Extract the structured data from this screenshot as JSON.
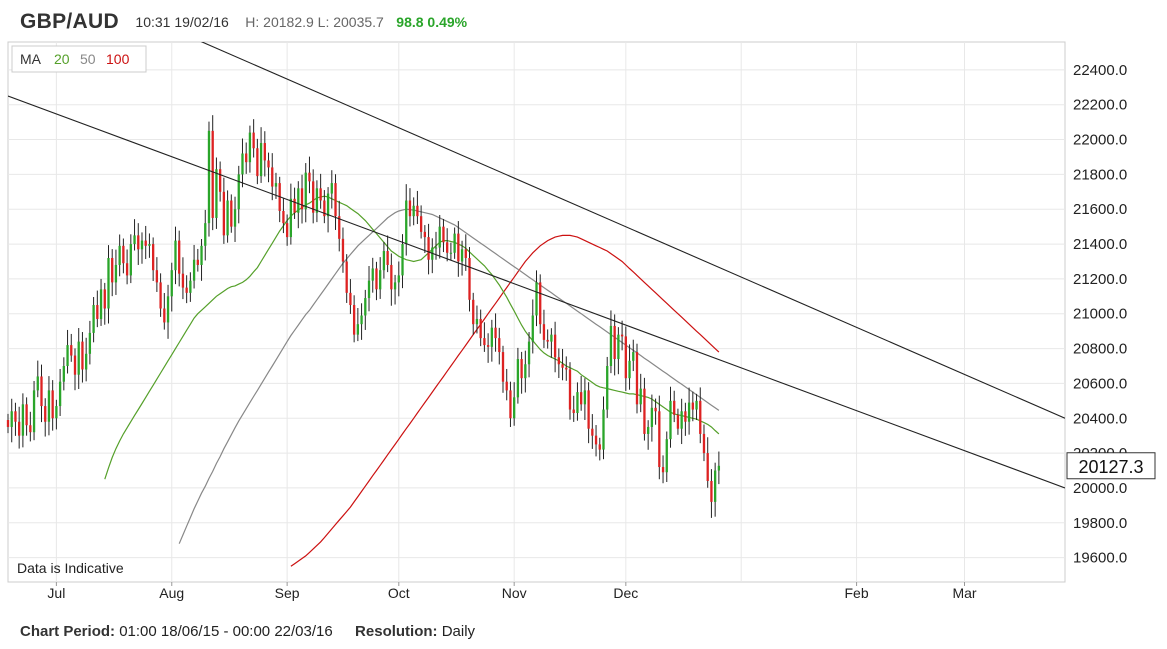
{
  "header": {
    "symbol": "GBP/AUD",
    "timestamp": "10:31 19/02/16",
    "high_low": "H: 20182.9 L: 20035.7",
    "change": "98.8 0.49%",
    "change_color": "#2aa52a"
  },
  "legend": {
    "ma_label": "MA",
    "ma20": "20",
    "ma50": "50",
    "ma100": "100",
    "ma20_color": "#55a02a",
    "ma50_color": "#888888",
    "ma100_color": "#cc1111"
  },
  "indicative_note": "Data is Indicative",
  "price_tag": "20127.3",
  "footer": {
    "period_label": "Chart Period:",
    "period_value": "01:00 18/06/15 - 00:00 22/03/16",
    "resolution_label": "Resolution:",
    "resolution_value": "Daily"
  },
  "chart_data": {
    "type": "candlestick",
    "y_ticks": [
      "22400.0",
      "22200.0",
      "22000.0",
      "21800.0",
      "21600.0",
      "21400.0",
      "21200.0",
      "21000.0",
      "20800.0",
      "20600.0",
      "20400.0",
      "20200.0",
      "20000.0",
      "19800.0",
      "19600.0"
    ],
    "ylim": [
      19460,
      22560
    ],
    "x_labels": [
      "Jul",
      "Aug",
      "Sep",
      "Oct",
      "Nov",
      "Dec",
      "Feb",
      "Mar"
    ],
    "x_ticks_days": [
      13,
      44,
      75,
      105,
      136,
      166,
      228,
      257
    ],
    "x_grid_days": [
      13,
      44,
      75,
      105,
      136,
      166,
      197,
      228,
      257
    ],
    "xlim": [
      0,
      284
    ],
    "grid": true,
    "up_color": "#2aa52a",
    "down_color": "#dd2222",
    "trendlines": [
      {
        "start": [
          0,
          22250
        ],
        "end": [
          284,
          20000
        ]
      },
      {
        "start": [
          50,
          22580
        ],
        "end": [
          284,
          20400
        ]
      }
    ],
    "closes": [
      20350,
      20440,
      20380,
      20300,
      20480,
      20360,
      20320,
      20560,
      20640,
      20470,
      20380,
      20560,
      20400,
      20470,
      20610,
      20700,
      20820,
      20760,
      20650,
      20840,
      20680,
      20770,
      20890,
      21050,
      20970,
      21140,
      21030,
      21320,
      21180,
      21280,
      21390,
      21290,
      21220,
      21400,
      21450,
      21370,
      21420,
      21390,
      21400,
      21250,
      21180,
      21030,
      20950,
      21100,
      21250,
      21420,
      21230,
      21150,
      21120,
      21190,
      21310,
      21280,
      21390,
      21520,
      22050,
      21550,
      21830,
      21700,
      21450,
      21650,
      21500,
      21600,
      21800,
      21920,
      21870,
      22040,
      21950,
      21790,
      21980,
      21880,
      21840,
      21730,
      21750,
      21590,
      21520,
      21440,
      21660,
      21580,
      21720,
      21600,
      21810,
      21760,
      21580,
      21720,
      21650,
      21560,
      21690,
      21750,
      21560,
      21430,
      21300,
      21120,
      21050,
      20880,
      20940,
      20990,
      21090,
      21190,
      21260,
      21140,
      21250,
      21360,
      21280,
      21140,
      21180,
      21220,
      21400,
      21650,
      21560,
      21620,
      21560,
      21470,
      21440,
      21310,
      21380,
      21380,
      21500,
      21410,
      21350,
      21350,
      21460,
      21300,
      21370,
      21320,
      21080,
      20940,
      20970,
      20860,
      20820,
      20810,
      20920,
      20860,
      20780,
      20610,
      20560,
      20400,
      20520,
      20740,
      20630,
      20710,
      20840,
      20990,
      21180,
      20940,
      20850,
      20840,
      20880,
      20750,
      20710,
      20690,
      20680,
      20450,
      20430,
      20550,
      20480,
      20560,
      20340,
      20300,
      20250,
      20220,
      20450,
      20700,
      20930,
      20740,
      20880,
      20870,
      20630,
      20730,
      20780,
      20480,
      20570,
      20310,
      20350,
      20460,
      20440,
      20120,
      20090,
      20280,
      20500,
      20420,
      20340,
      20440,
      20380,
      20490,
      20450,
      20500,
      20310,
      20200,
      20040,
      19920,
      20100,
      20127
    ],
    "ma20": [
      20050,
      20115,
      20175,
      20225,
      20270,
      20310,
      20345,
      20380,
      20415,
      20450,
      20485,
      20520,
      20555,
      20590,
      20625,
      20660,
      20695,
      20730,
      20765,
      20800,
      20835,
      20870,
      20905,
      20940,
      20975,
      21000,
      21020,
      21040,
      21060,
      21080,
      21100,
      21115,
      21130,
      21145,
      21155,
      21160,
      21170,
      21180,
      21195,
      21215,
      21240,
      21265,
      21300,
      21335,
      21370,
      21405,
      21440,
      21475,
      21505,
      21535,
      21560,
      21580,
      21595,
      21610,
      21625,
      21635,
      21650,
      21665,
      21670,
      21675,
      21670,
      21660,
      21650,
      21640,
      21630,
      21620,
      21605,
      21590,
      21575,
      21555,
      21535,
      21510,
      21485,
      21460,
      21435,
      21410,
      21385,
      21360,
      21345,
      21330,
      21320,
      21310,
      21305,
      21300,
      21305,
      21310,
      21330,
      21350,
      21370,
      21390,
      21410,
      21420,
      21420,
      21415,
      21410,
      21400,
      21390,
      21375,
      21355,
      21335,
      21315,
      21295,
      21275,
      21250,
      21225,
      21195,
      21165,
      21130,
      21095,
      21055,
      21015,
      20975,
      20935,
      20900,
      20870,
      20845,
      20820,
      20795,
      20775,
      20760,
      20750,
      20740,
      20730,
      20715,
      20700,
      20690,
      20680,
      20670,
      20650,
      20635,
      20620,
      20605,
      20590,
      20580,
      20575,
      20570,
      20565,
      20560,
      20555,
      20550,
      20545,
      20540,
      20540,
      20535,
      20530,
      20525,
      20520,
      20510,
      20495,
      20480,
      20465,
      20450,
      20435,
      20425,
      20420,
      20415,
      20410,
      20405,
      20400,
      20395,
      20385,
      20375,
      20365,
      20350,
      20330,
      20310
    ],
    "ma50": [
      19680,
      19730,
      19780,
      19830,
      19880,
      19925,
      19970,
      20010,
      20055,
      20095,
      20140,
      20180,
      20225,
      20265,
      20305,
      20345,
      20385,
      20420,
      20455,
      20490,
      20525,
      20560,
      20595,
      20630,
      20665,
      20700,
      20735,
      20770,
      20805,
      20840,
      20875,
      20905,
      20935,
      20965,
      20995,
      21020,
      21050,
      21080,
      21110,
      21140,
      21170,
      21200,
      21230,
      21260,
      21290,
      21315,
      21340,
      21365,
      21390,
      21410,
      21430,
      21450,
      21470,
      21490,
      21510,
      21530,
      21550,
      21565,
      21580,
      21590,
      21595,
      21600,
      21598,
      21595,
      21590,
      21585,
      21580,
      21575,
      21570,
      21560,
      21550,
      21540,
      21530,
      21520,
      21510,
      21495,
      21480,
      21465,
      21450,
      21435,
      21420,
      21405,
      21390,
      21375,
      21360,
      21345,
      21330,
      21315,
      21300,
      21285,
      21270,
      21255,
      21240,
      21225,
      21210,
      21195,
      21180,
      21165,
      21150,
      21135,
      21120,
      21105,
      21090,
      21075,
      21060,
      21045,
      21030,
      21015,
      21000,
      20985,
      20970,
      20955,
      20940,
      20925,
      20910,
      20895,
      20880,
      20865,
      20850,
      20835,
      20820,
      20805,
      20790,
      20775,
      20760,
      20745,
      20730,
      20715,
      20700,
      20685,
      20670,
      20655,
      20640,
      20625,
      20610,
      20595,
      20580,
      20565,
      20550,
      20535,
      20520,
      20505,
      20490,
      20475,
      20460,
      20445
    ],
    "ma100": [
      19550,
      19565,
      19580,
      19595,
      19610,
      19630,
      19650,
      19670,
      19690,
      19715,
      19740,
      19765,
      19790,
      19815,
      19840,
      19865,
      19890,
      19920,
      19950,
      19980,
      20010,
      20040,
      20070,
      20100,
      20130,
      20160,
      20190,
      20220,
      20250,
      20280,
      20310,
      20340,
      20370,
      20400,
      20430,
      20460,
      20490,
      20520,
      20550,
      20580,
      20610,
      20640,
      20670,
      20700,
      20730,
      20760,
      20790,
      20820,
      20850,
      20880,
      20910,
      20940,
      20970,
      21000,
      21030,
      21060,
      21090,
      21120,
      21150,
      21180,
      21210,
      21240,
      21270,
      21300,
      21325,
      21350,
      21370,
      21390,
      21405,
      21420,
      21430,
      21440,
      21445,
      21450,
      21450,
      21450,
      21445,
      21440,
      21430,
      21420,
      21410,
      21400,
      21390,
      21380,
      21370,
      21360,
      21345,
      21330,
      21315,
      21300,
      21280,
      21260,
      21240,
      21220,
      21200,
      21180,
      21160,
      21140,
      21120,
      21100,
      21080,
      21060,
      21040,
      21020,
      21000,
      20980,
      20960,
      20940,
      20920,
      20900,
      20880,
      20860,
      20840,
      20820,
      20800,
      20780
    ]
  }
}
